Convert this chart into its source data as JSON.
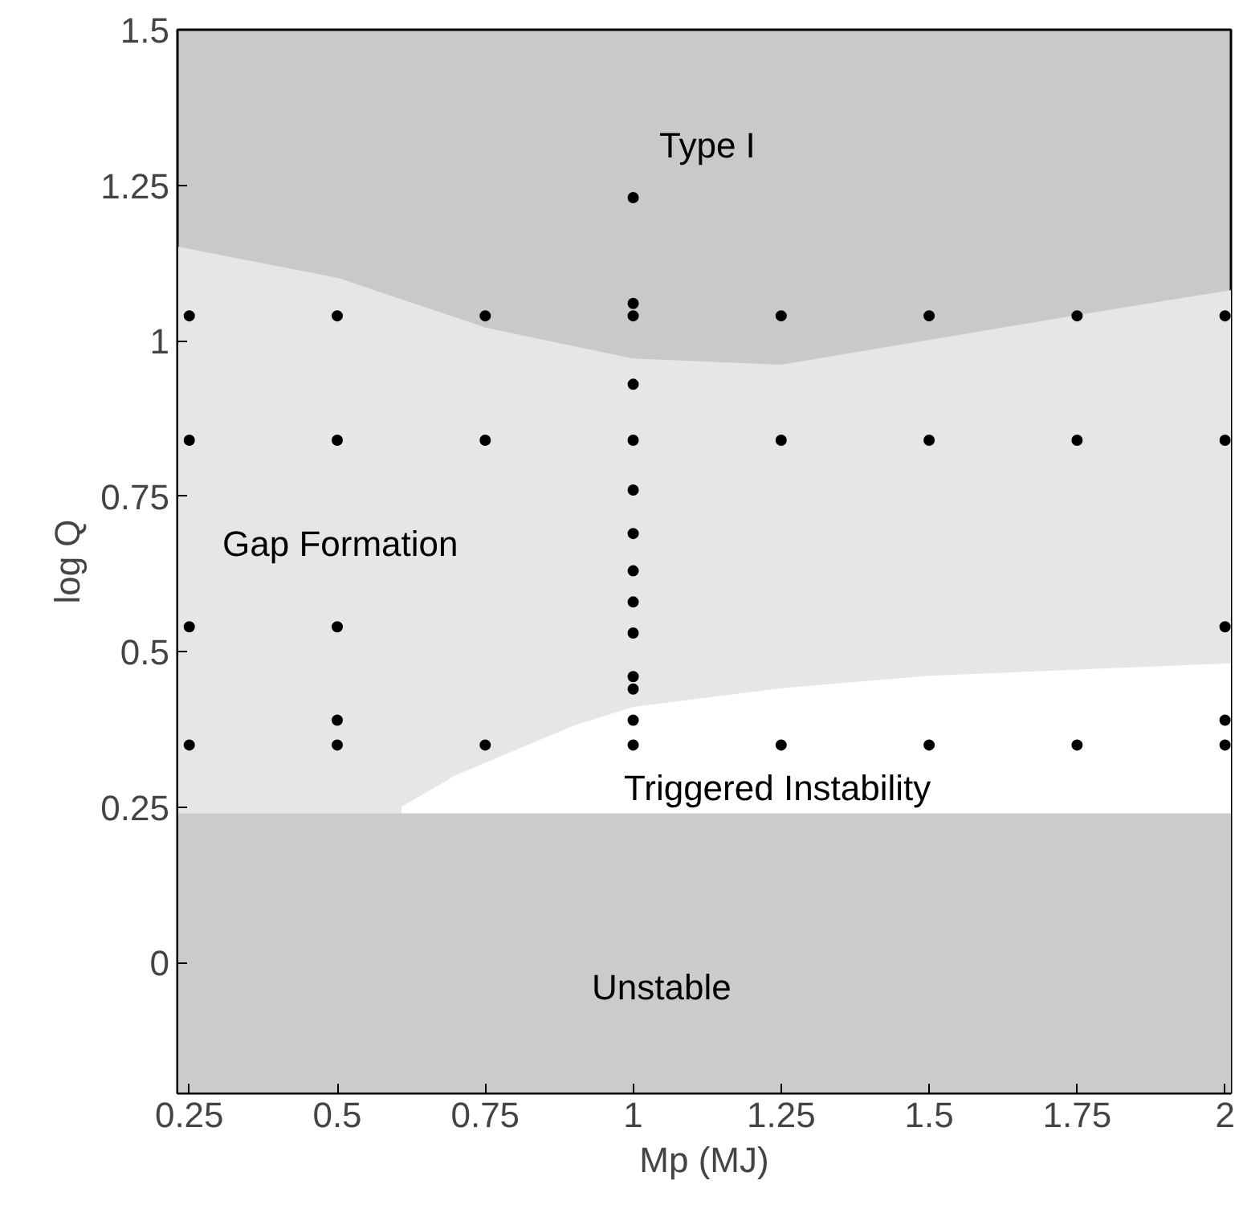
{
  "chart_data": {
    "type": "scatter",
    "xlabel": "Mp (MJ)",
    "ylabel": "log Q",
    "xlim": [
      0.23,
      2.01
    ],
    "ylim": [
      -0.21,
      1.5
    ],
    "xticks": [
      0.25,
      0.5,
      0.75,
      1,
      1.25,
      1.5,
      1.75,
      2
    ],
    "yticks": [
      0,
      0.25,
      0.5,
      0.75,
      1,
      1.25,
      1.5
    ],
    "grid": false,
    "bands": [
      {
        "axis": "y",
        "from": -0.21,
        "to": 0.24,
        "color": "#cbcbcb"
      }
    ],
    "series": [
      {
        "type": "area",
        "color": "#e6e6e6",
        "x": [
          0.23,
          0.5,
          0.75,
          1,
          1.25,
          1.5,
          1.75,
          2.01
        ],
        "values": [
          1.15,
          1.1,
          1.02,
          0.97,
          0.96,
          1.0,
          1.04,
          1.08
        ]
      },
      {
        "type": "area",
        "color": "#ffffff",
        "x": [
          0.61,
          0.7,
          0.8,
          0.9,
          1.0,
          1.25,
          1.5,
          1.75,
          2.01
        ],
        "values": [
          0.25,
          0.3,
          0.34,
          0.38,
          0.41,
          0.44,
          0.46,
          0.47,
          0.48
        ]
      },
      {
        "color": "#000000",
        "marker": "circle",
        "x": [
          0.25,
          0.25,
          0.25,
          0.25,
          0.5,
          0.5,
          0.5,
          0.5,
          0.5,
          0.75,
          0.75,
          0.75,
          1,
          1,
          1,
          1,
          1,
          1,
          1,
          1,
          1,
          1,
          1,
          1,
          1,
          1,
          1.25,
          1.25,
          1.25,
          1.5,
          1.5,
          1.5,
          1.75,
          1.75,
          1.75,
          2,
          2,
          2,
          2,
          2
        ],
        "values": [
          1.04,
          0.84,
          0.54,
          0.35,
          1.04,
          0.84,
          0.54,
          0.39,
          0.35,
          1.04,
          0.84,
          0.35,
          1.23,
          1.06,
          1.04,
          0.93,
          0.84,
          0.76,
          0.69,
          0.63,
          0.58,
          0.53,
          0.46,
          0.44,
          0.39,
          0.35,
          1.04,
          0.84,
          0.35,
          1.04,
          0.84,
          0.35,
          1.04,
          0.84,
          0.35,
          1.04,
          0.84,
          0.54,
          0.39,
          0.35
        ]
      }
    ],
    "annotations": [
      "Type I",
      "Gap Formation",
      "Triggered Instability",
      "Unstable"
    ]
  }
}
